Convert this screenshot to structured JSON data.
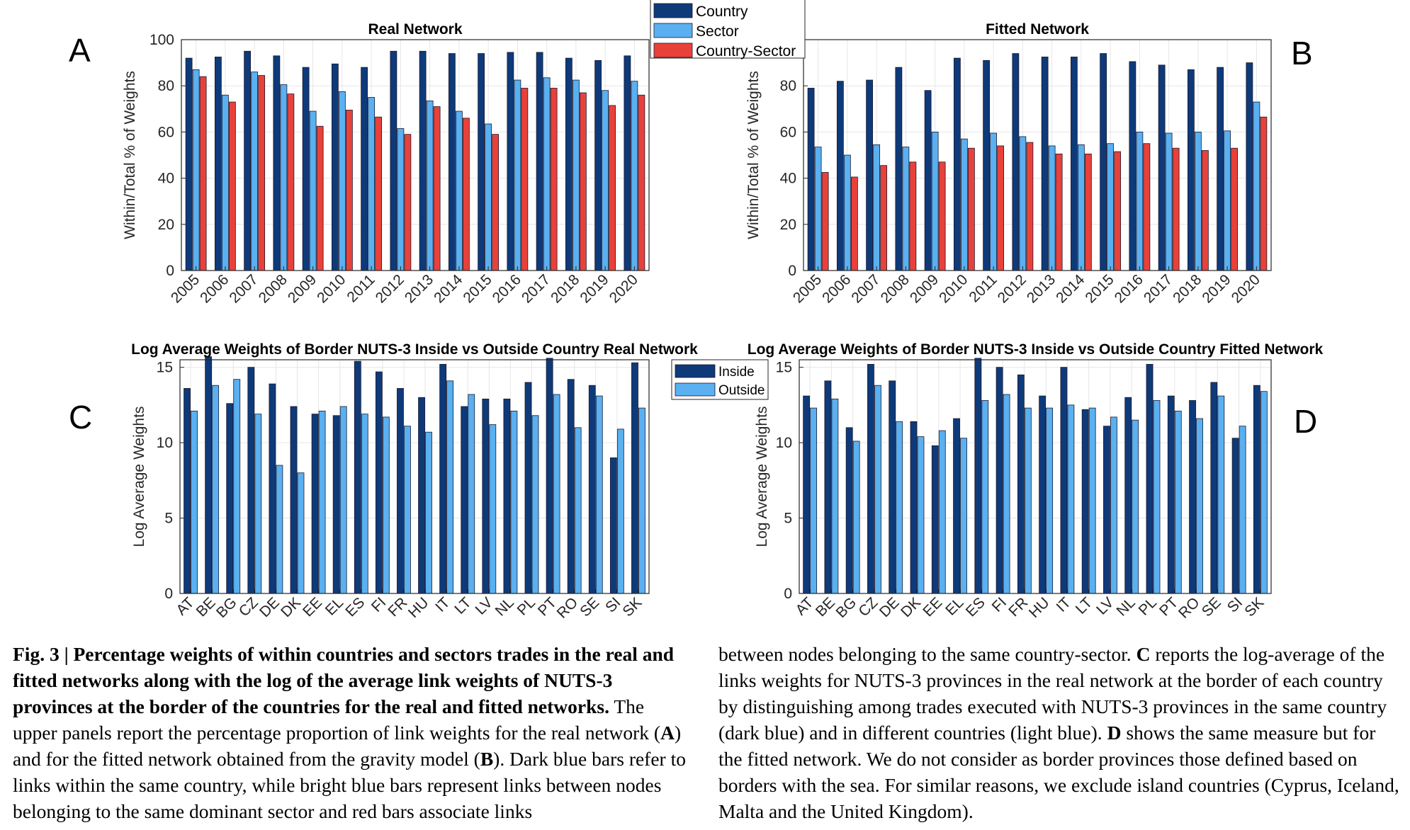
{
  "top_legend": {
    "entries": [
      {
        "label": "Country",
        "color": "#0e3a7a"
      },
      {
        "label": "Sector",
        "color": "#5ab0f0"
      },
      {
        "label": "Country-Sector",
        "color": "#e8413a"
      }
    ]
  },
  "bottom_legend": {
    "entries": [
      {
        "label": "Inside",
        "color": "#0e3a7a"
      },
      {
        "label": "Outside",
        "color": "#5ab0f0"
      }
    ]
  },
  "panels": {
    "A": "A",
    "B": "B",
    "C": "C",
    "D": "D"
  },
  "chart_data": [
    {
      "id": "A",
      "type": "bar",
      "title": "Real Network",
      "ylabel": "Within/Total % of Weights",
      "xlabel": "",
      "ylim": [
        0,
        100
      ],
      "yticks": [
        0,
        20,
        40,
        60,
        80,
        100
      ],
      "categories": [
        "2005",
        "2006",
        "2007",
        "2008",
        "2009",
        "2010",
        "2011",
        "2012",
        "2013",
        "2014",
        "2015",
        "2016",
        "2017",
        "2018",
        "2019",
        "2020"
      ],
      "series": [
        {
          "name": "Country",
          "color": "#0e3a7a",
          "values": [
            92,
            92.5,
            95,
            93,
            88,
            89.5,
            88,
            95,
            95,
            94,
            94,
            94.5,
            94.5,
            92,
            91,
            93
          ]
        },
        {
          "name": "Sector",
          "color": "#5ab0f0",
          "values": [
            87,
            76,
            86,
            80.5,
            69,
            77.5,
            75,
            61.5,
            73.5,
            69,
            63.5,
            82.5,
            83.5,
            82.5,
            78,
            82
          ]
        },
        {
          "name": "Country-Sector",
          "color": "#e8413a",
          "values": [
            84,
            73,
            84.5,
            76.5,
            62.5,
            69.5,
            66.5,
            59,
            71,
            66,
            59,
            79,
            79,
            77,
            71.5,
            76
          ]
        }
      ]
    },
    {
      "id": "B",
      "type": "bar",
      "title": "Fitted Network",
      "ylabel": "Within/Total % of Weights",
      "xlabel": "",
      "ylim": [
        0,
        100
      ],
      "yticks": [
        0,
        20,
        40,
        60,
        80
      ],
      "categories": [
        "2005",
        "2006",
        "2007",
        "2008",
        "2009",
        "2010",
        "2011",
        "2012",
        "2013",
        "2014",
        "2015",
        "2016",
        "2017",
        "2018",
        "2019",
        "2020"
      ],
      "series": [
        {
          "name": "Country",
          "color": "#0e3a7a",
          "values": [
            79,
            82,
            82.5,
            88,
            78,
            92,
            91,
            94,
            92.5,
            92.5,
            94,
            90.5,
            89,
            87,
            88,
            90
          ]
        },
        {
          "name": "Sector",
          "color": "#5ab0f0",
          "values": [
            53.5,
            50,
            54.5,
            53.5,
            60,
            57,
            59.5,
            58,
            54,
            54.5,
            55,
            60,
            59.5,
            60,
            60.5,
            73
          ]
        },
        {
          "name": "Country-Sector",
          "color": "#e8413a",
          "values": [
            42.5,
            40.5,
            45.5,
            47,
            47,
            53,
            54,
            55.5,
            50.5,
            50.5,
            51.5,
            55,
            53,
            52,
            53,
            66.5
          ]
        }
      ]
    },
    {
      "id": "C",
      "type": "bar",
      "title": "Log Average Weights of Border NUTS-3 Inside vs Outside Country Real Network",
      "ylabel": "Log Average Weights",
      "xlabel": "",
      "ylim": [
        0,
        15.5
      ],
      "yticks": [
        0,
        5,
        10,
        15
      ],
      "categories": [
        "AT",
        "BE",
        "BG",
        "CZ",
        "DE",
        "DK",
        "EE",
        "EL",
        "ES",
        "FI",
        "FR",
        "HU",
        "IT",
        "LT",
        "LV",
        "NL",
        "PL",
        "PT",
        "RO",
        "SE",
        "SI",
        "SK"
      ],
      "series": [
        {
          "name": "Inside",
          "color": "#0e3a7a",
          "values": [
            13.6,
            15.7,
            12.6,
            15,
            13.9,
            12.4,
            11.9,
            11.8,
            15.4,
            14.7,
            13.6,
            13,
            15.2,
            12.4,
            12.9,
            12.9,
            14,
            15.6,
            14.2,
            13.8,
            9,
            15.3
          ]
        },
        {
          "name": "Outside",
          "color": "#5ab0f0",
          "values": [
            12.1,
            13.8,
            14.2,
            11.9,
            8.5,
            8,
            12.1,
            12.4,
            11.9,
            11.7,
            11.1,
            10.7,
            14.1,
            13.2,
            11.2,
            12.1,
            11.8,
            13.2,
            11,
            13.1,
            10.9,
            12.3
          ]
        }
      ]
    },
    {
      "id": "D",
      "type": "bar",
      "title": "Log Average Weights of Border NUTS-3 Inside vs Outside Country Fitted Network",
      "ylabel": "Log Average Weights",
      "xlabel": "",
      "ylim": [
        0,
        15.5
      ],
      "yticks": [
        0,
        5,
        10,
        15
      ],
      "categories": [
        "AT",
        "BE",
        "BG",
        "CZ",
        "DE",
        "DK",
        "EE",
        "EL",
        "ES",
        "FI",
        "FR",
        "HU",
        "IT",
        "LT",
        "LV",
        "NL",
        "PL",
        "PT",
        "RO",
        "SE",
        "SI",
        "SK"
      ],
      "series": [
        {
          "name": "Inside",
          "color": "#0e3a7a",
          "values": [
            13.1,
            14.1,
            11,
            15.2,
            14.1,
            11.4,
            9.8,
            11.6,
            15.6,
            15,
            14.5,
            13.1,
            15,
            12.2,
            11.1,
            13,
            15.2,
            13.1,
            12.8,
            14,
            10.3,
            13.8
          ]
        },
        {
          "name": "Outside",
          "color": "#5ab0f0",
          "values": [
            12.3,
            12.9,
            10.1,
            13.8,
            11.4,
            10.4,
            10.8,
            10.3,
            12.8,
            13.2,
            12.3,
            12.3,
            12.5,
            12.3,
            11.7,
            11.5,
            12.8,
            12.1,
            11.6,
            13.1,
            11.1,
            13.4
          ]
        }
      ]
    }
  ],
  "caption": {
    "left_bold": "Fig. 3 | Percentage weights of within countries and sectors trades in the real and fitted networks along with the log of the average link weights of NUTS-3 provinces at the border of the countries for the real and fitted networks.",
    "left_p1": " The upper panels report the percentage proportion of link weights for the real network (",
    "left_A": "A",
    "left_p2": ") and for the fitted network obtained from the gravity model (",
    "left_B": "B",
    "left_p3": "). Dark blue bars refer to links within the same country, while bright blue bars represent links between nodes belonging to the same dominant sector and red bars associate links",
    "right_p1": "between nodes belonging to the same country-sector. ",
    "right_C": "C",
    "right_p2": " reports the log-average of the links weights for NUTS-3 provinces in the real network at the border of each country by distinguishing among trades executed with NUTS-3 provinces in the same country (dark blue) and in different countries (light blue). ",
    "right_D": "D",
    "right_p3": " shows the same measure but for the fitted network. We do not consider as border provinces those defined based on borders with the sea. For similar reasons, we exclude island countries (Cyprus, Iceland, Malta and the United Kingdom)."
  }
}
